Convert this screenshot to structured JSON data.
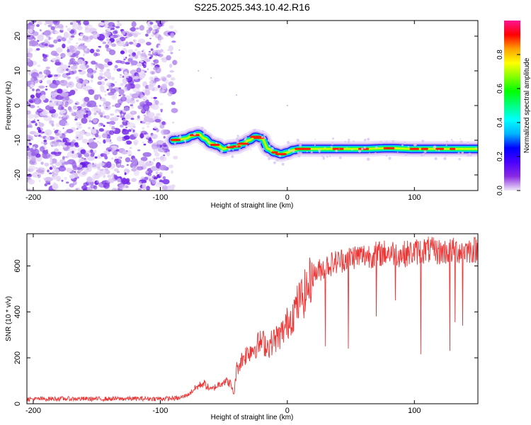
{
  "figure": {
    "title": "S225.2025.343.10.42.R16"
  },
  "chart_data": [
    {
      "type": "heatmap",
      "title": "S225.2025.343.10.42.R16",
      "xlabel": "Height of straight line (km)",
      "ylabel": "Frequency (Hz)",
      "xlim": [
        -205,
        150
      ],
      "ylim": [
        -24.5,
        24.5
      ],
      "x_ticks": [
        -200,
        -100,
        0,
        100
      ],
      "x_tick_labels": [
        "-200",
        "-100",
        "0",
        "100"
      ],
      "y_ticks": [
        20,
        10,
        0,
        -10,
        -20
      ],
      "y_tick_labels": [
        "20",
        "10",
        "0",
        "-10",
        "-20"
      ],
      "noise_region_x": [
        -205,
        -88
      ],
      "ridge": {
        "x": [
          -90,
          -85,
          -80,
          -75,
          -70,
          -65,
          -60,
          -55,
          -50,
          -45,
          -40,
          -35,
          -30,
          -25,
          -20,
          -15,
          -10,
          -5,
          0,
          5,
          10,
          20,
          40,
          60,
          80,
          100,
          120,
          150
        ],
        "freq": [
          -10,
          -9.8,
          -9.5,
          -8.7,
          -8.2,
          -9.5,
          -11,
          -11.5,
          -12.5,
          -12,
          -11.8,
          -11,
          -10,
          -9,
          -9.5,
          -12.5,
          -13.5,
          -14,
          -13.5,
          -12.8,
          -12.5,
          -12.5,
          -12.5,
          -12.5,
          -12.3,
          -12.5,
          -12.5,
          -12.5
        ]
      },
      "colorbar": {
        "label": "Normalized spectral amplitude",
        "range": [
          0,
          1
        ],
        "ticks": [
          0.0,
          0.2,
          0.4,
          0.6,
          0.8
        ],
        "tick_labels": [
          "0.0",
          "0.2",
          "0.4",
          "0.6",
          "0.8"
        ],
        "colormap": [
          "#f0e8f8",
          "#8a2be2",
          "#4a00ff",
          "#0000ff",
          "#00b4ff",
          "#00ffff",
          "#00ff80",
          "#00ff00",
          "#80ff00",
          "#ffff00",
          "#ffa000",
          "#ff0000",
          "#ff1493"
        ]
      }
    },
    {
      "type": "line",
      "xlabel": "Height of straight line (km)",
      "ylabel": "SNR (10 * v/v)",
      "xlim": [
        -205,
        150
      ],
      "ylim": [
        0,
        740
      ],
      "x_ticks": [
        -200,
        -100,
        0,
        100
      ],
      "x_tick_labels": [
        "-200",
        "-100",
        "0",
        "100"
      ],
      "y_ticks": [
        0,
        200,
        400,
        600
      ],
      "y_tick_labels": [
        "0",
        "200",
        "400",
        "600"
      ],
      "line_color": "#ee3333",
      "series": [
        {
          "name": "SNR",
          "x": [
            -205,
            -180,
            -150,
            -120,
            -100,
            -85,
            -78,
            -72,
            -66,
            -60,
            -55,
            -50,
            -45,
            -42,
            -40,
            -35,
            -30,
            -25,
            -20,
            -15,
            -10,
            -5,
            0,
            5,
            10,
            15,
            20,
            25,
            30,
            35,
            40,
            50,
            60,
            70,
            80,
            90,
            100,
            110,
            120,
            130,
            140,
            150
          ],
          "y": [
            20,
            22,
            21,
            22,
            22,
            24,
            40,
            70,
            90,
            60,
            80,
            100,
            90,
            40,
            150,
            200,
            230,
            250,
            270,
            250,
            280,
            300,
            350,
            400,
            450,
            490,
            560,
            580,
            600,
            610,
            620,
            640,
            645,
            650,
            660,
            650,
            660,
            670,
            660,
            665,
            670,
            670
          ]
        }
      ],
      "dips": [
        {
          "x": 10,
          "y": 420
        },
        {
          "x": 30,
          "y": 250
        },
        {
          "x": 48,
          "y": 240
        },
        {
          "x": 70,
          "y": 380
        },
        {
          "x": 85,
          "y": 450
        },
        {
          "x": 105,
          "y": 215
        },
        {
          "x": 128,
          "y": 230
        },
        {
          "x": 132,
          "y": 355
        },
        {
          "x": 138,
          "y": 340
        }
      ]
    }
  ]
}
